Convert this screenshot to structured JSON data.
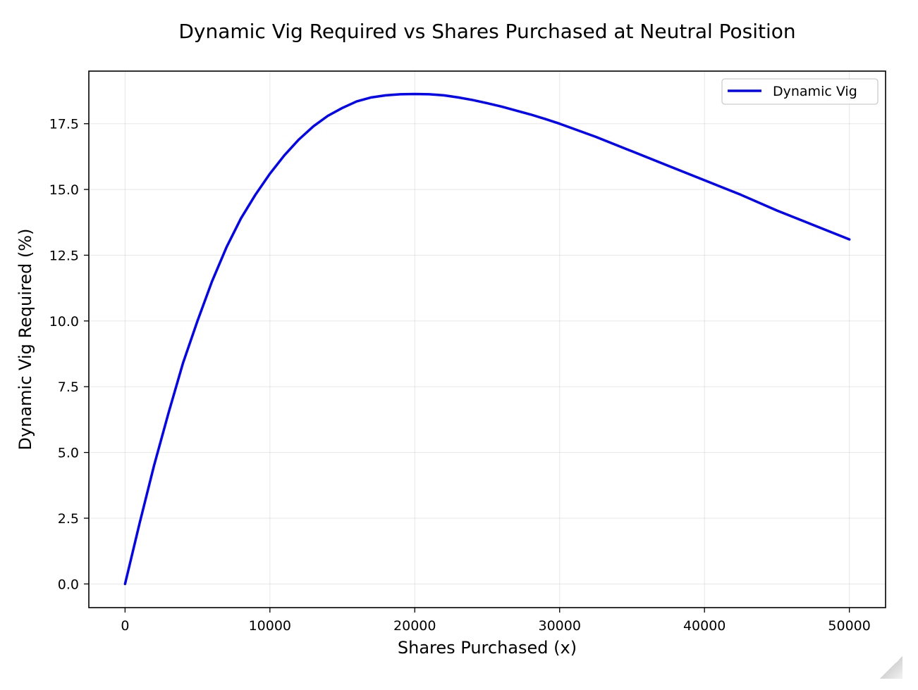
{
  "chart_data": {
    "type": "line",
    "title": "Dynamic Vig Required vs Shares Purchased at Neutral Position",
    "xlabel": "Shares Purchased (x)",
    "ylabel": "Dynamic Vig Required (%)",
    "xlim": [
      -2500,
      52500
    ],
    "ylim": [
      -0.9,
      19.5
    ],
    "x_ticks": [
      0,
      10000,
      20000,
      30000,
      40000,
      50000
    ],
    "x_tick_labels": [
      "0",
      "10000",
      "20000",
      "30000",
      "40000",
      "50000"
    ],
    "y_ticks": [
      0.0,
      2.5,
      5.0,
      7.5,
      10.0,
      12.5,
      15.0,
      17.5
    ],
    "y_tick_labels": [
      "0.0",
      "2.5",
      "5.0",
      "7.5",
      "10.0",
      "12.5",
      "15.0",
      "17.5"
    ],
    "grid": true,
    "legend_position": "top-right",
    "series": [
      {
        "name": "Dynamic Vig",
        "color": "#0000ff",
        "x": [
          0,
          1000,
          2000,
          3000,
          4000,
          5000,
          6000,
          7000,
          8000,
          9000,
          10000,
          11000,
          12000,
          13000,
          14000,
          15000,
          16000,
          17000,
          18000,
          19000,
          20000,
          21000,
          22000,
          23000,
          24000,
          25000,
          26000,
          27000,
          28000,
          29000,
          30000,
          32500,
          35000,
          37500,
          40000,
          42500,
          45000,
          47500,
          50000
        ],
        "y": [
          0.0,
          2.3,
          4.5,
          6.5,
          8.4,
          10.0,
          11.5,
          12.8,
          13.9,
          14.8,
          15.6,
          16.3,
          16.9,
          17.4,
          17.8,
          18.1,
          18.35,
          18.5,
          18.58,
          18.62,
          18.63,
          18.62,
          18.58,
          18.5,
          18.4,
          18.28,
          18.15,
          18.0,
          17.85,
          17.68,
          17.5,
          17.0,
          16.45,
          15.9,
          15.35,
          14.8,
          14.2,
          13.65,
          13.1
        ]
      }
    ]
  },
  "corner": {
    "icon": "page-curl-icon"
  }
}
